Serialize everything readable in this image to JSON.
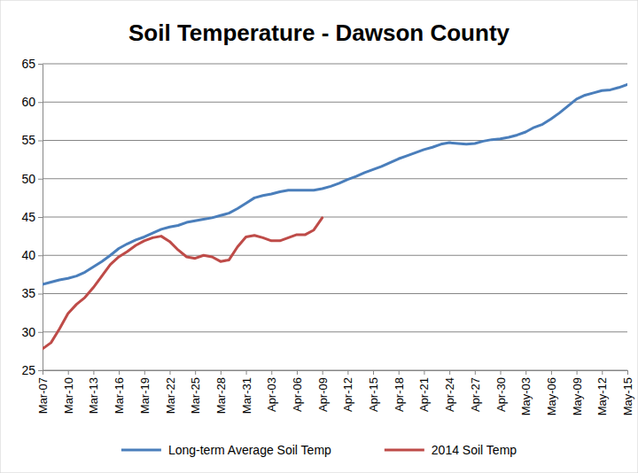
{
  "chart_data": {
    "type": "line",
    "title": "Soil Temperature - Dawson County",
    "categories": [
      "Mar-07",
      null,
      null,
      "Mar-10",
      null,
      null,
      "Mar-13",
      null,
      null,
      "Mar-16",
      null,
      null,
      "Mar-19",
      null,
      null,
      "Mar-22",
      null,
      null,
      "Mar-25",
      null,
      null,
      "Mar-28",
      null,
      null,
      "Mar-31",
      null,
      null,
      "Apr-03",
      null,
      null,
      "Apr-06",
      null,
      null,
      "Apr-09",
      null,
      null,
      "Apr-12",
      null,
      null,
      "Apr-15",
      null,
      null,
      "Apr-18",
      null,
      null,
      "Apr-21",
      null,
      null,
      "Apr-24",
      null,
      null,
      "Apr-27",
      null,
      null,
      "Apr-30",
      null,
      null,
      "May-03",
      null,
      null,
      "May-06",
      null,
      null,
      "May-09",
      null,
      null,
      "May-12",
      null,
      null,
      "May-15"
    ],
    "series": [
      {
        "name": "Long-term Average Soil Temp",
        "color": "#4a7ebb",
        "values": [
          36.2,
          36.5,
          36.8,
          37.0,
          37.3,
          37.8,
          38.5,
          39.2,
          40.0,
          40.9,
          41.5,
          42.0,
          42.4,
          42.9,
          43.4,
          43.7,
          43.9,
          44.3,
          44.5,
          44.7,
          44.9,
          45.2,
          45.5,
          46.1,
          46.8,
          47.5,
          47.8,
          48.0,
          48.3,
          48.5,
          48.5,
          48.5,
          48.5,
          48.7,
          49.0,
          49.4,
          49.9,
          50.3,
          50.8,
          51.2,
          51.6,
          52.1,
          52.6,
          53.0,
          53.4,
          53.8,
          54.1,
          54.5,
          54.7,
          54.6,
          54.5,
          54.6,
          54.9,
          55.1,
          55.2,
          55.4,
          55.7,
          56.1,
          56.7,
          57.1,
          57.8,
          58.6,
          59.5,
          60.4,
          60.9,
          61.2,
          61.5,
          61.6,
          61.9,
          62.3
        ]
      },
      {
        "name": "2014 Soil Temp",
        "color": "#be4b48",
        "values": [
          27.8,
          28.6,
          30.4,
          32.4,
          33.6,
          34.5,
          35.8,
          37.3,
          38.8,
          39.8,
          40.5,
          41.3,
          41.9,
          42.3,
          42.5,
          41.8,
          40.7,
          39.8,
          39.6,
          40.0,
          39.8,
          39.2,
          39.4,
          41.1,
          42.4,
          42.6,
          42.3,
          41.9,
          41.9,
          42.3,
          42.7,
          42.7,
          43.3,
          44.9,
          null,
          null,
          null,
          null,
          null,
          null,
          null,
          null,
          null,
          null,
          null,
          null,
          null,
          null,
          null,
          null,
          null,
          null,
          null,
          null,
          null,
          null,
          null,
          null,
          null,
          null,
          null,
          null,
          null,
          null,
          null,
          null,
          null,
          null,
          null,
          null
        ]
      }
    ],
    "ylim": [
      25,
      65
    ],
    "yticks": [
      25,
      30,
      35,
      40,
      45,
      50,
      55,
      60,
      65
    ],
    "grid": true,
    "legend": "bottom"
  }
}
